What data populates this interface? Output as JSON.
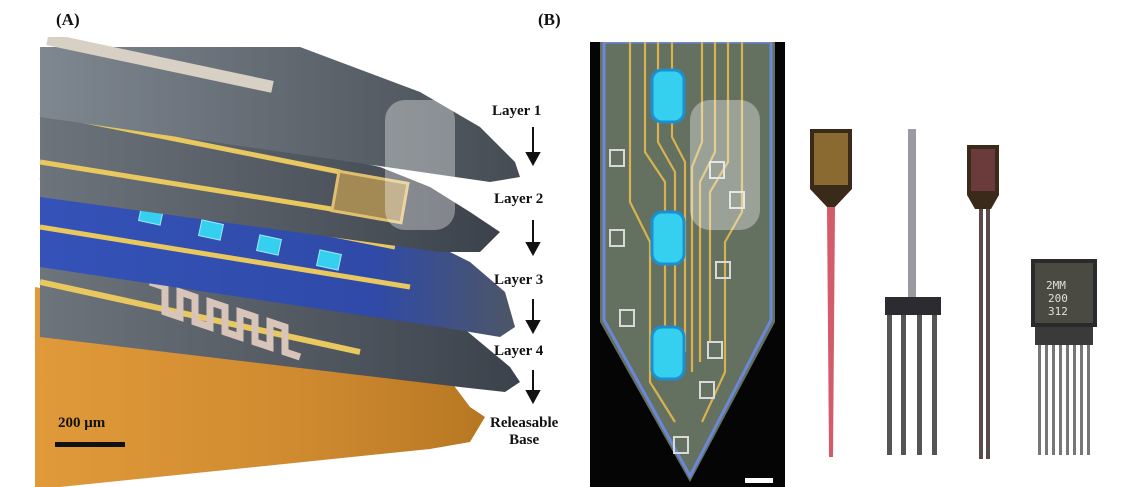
{
  "panels": {
    "a": {
      "label": "(A)"
    },
    "b": {
      "label": "(B)"
    }
  },
  "layers": [
    {
      "label": "Layer 1"
    },
    {
      "label": "Layer 2"
    },
    {
      "label": "Layer 3"
    },
    {
      "label": "Layer 4"
    },
    {
      "label": "Releasable"
    }
  ],
  "base_line2": "Base",
  "scale_bar": {
    "label": "200 μm"
  },
  "probe_chip_texts": [
    "2MM",
    "200",
    "312"
  ],
  "colors": {
    "gold": "#d7b24f",
    "orange_base": "#d08a2e",
    "blue_layer": "#2f4aa8",
    "gray_layer": "#4e5661",
    "led_cyan": "#35d0f0"
  }
}
